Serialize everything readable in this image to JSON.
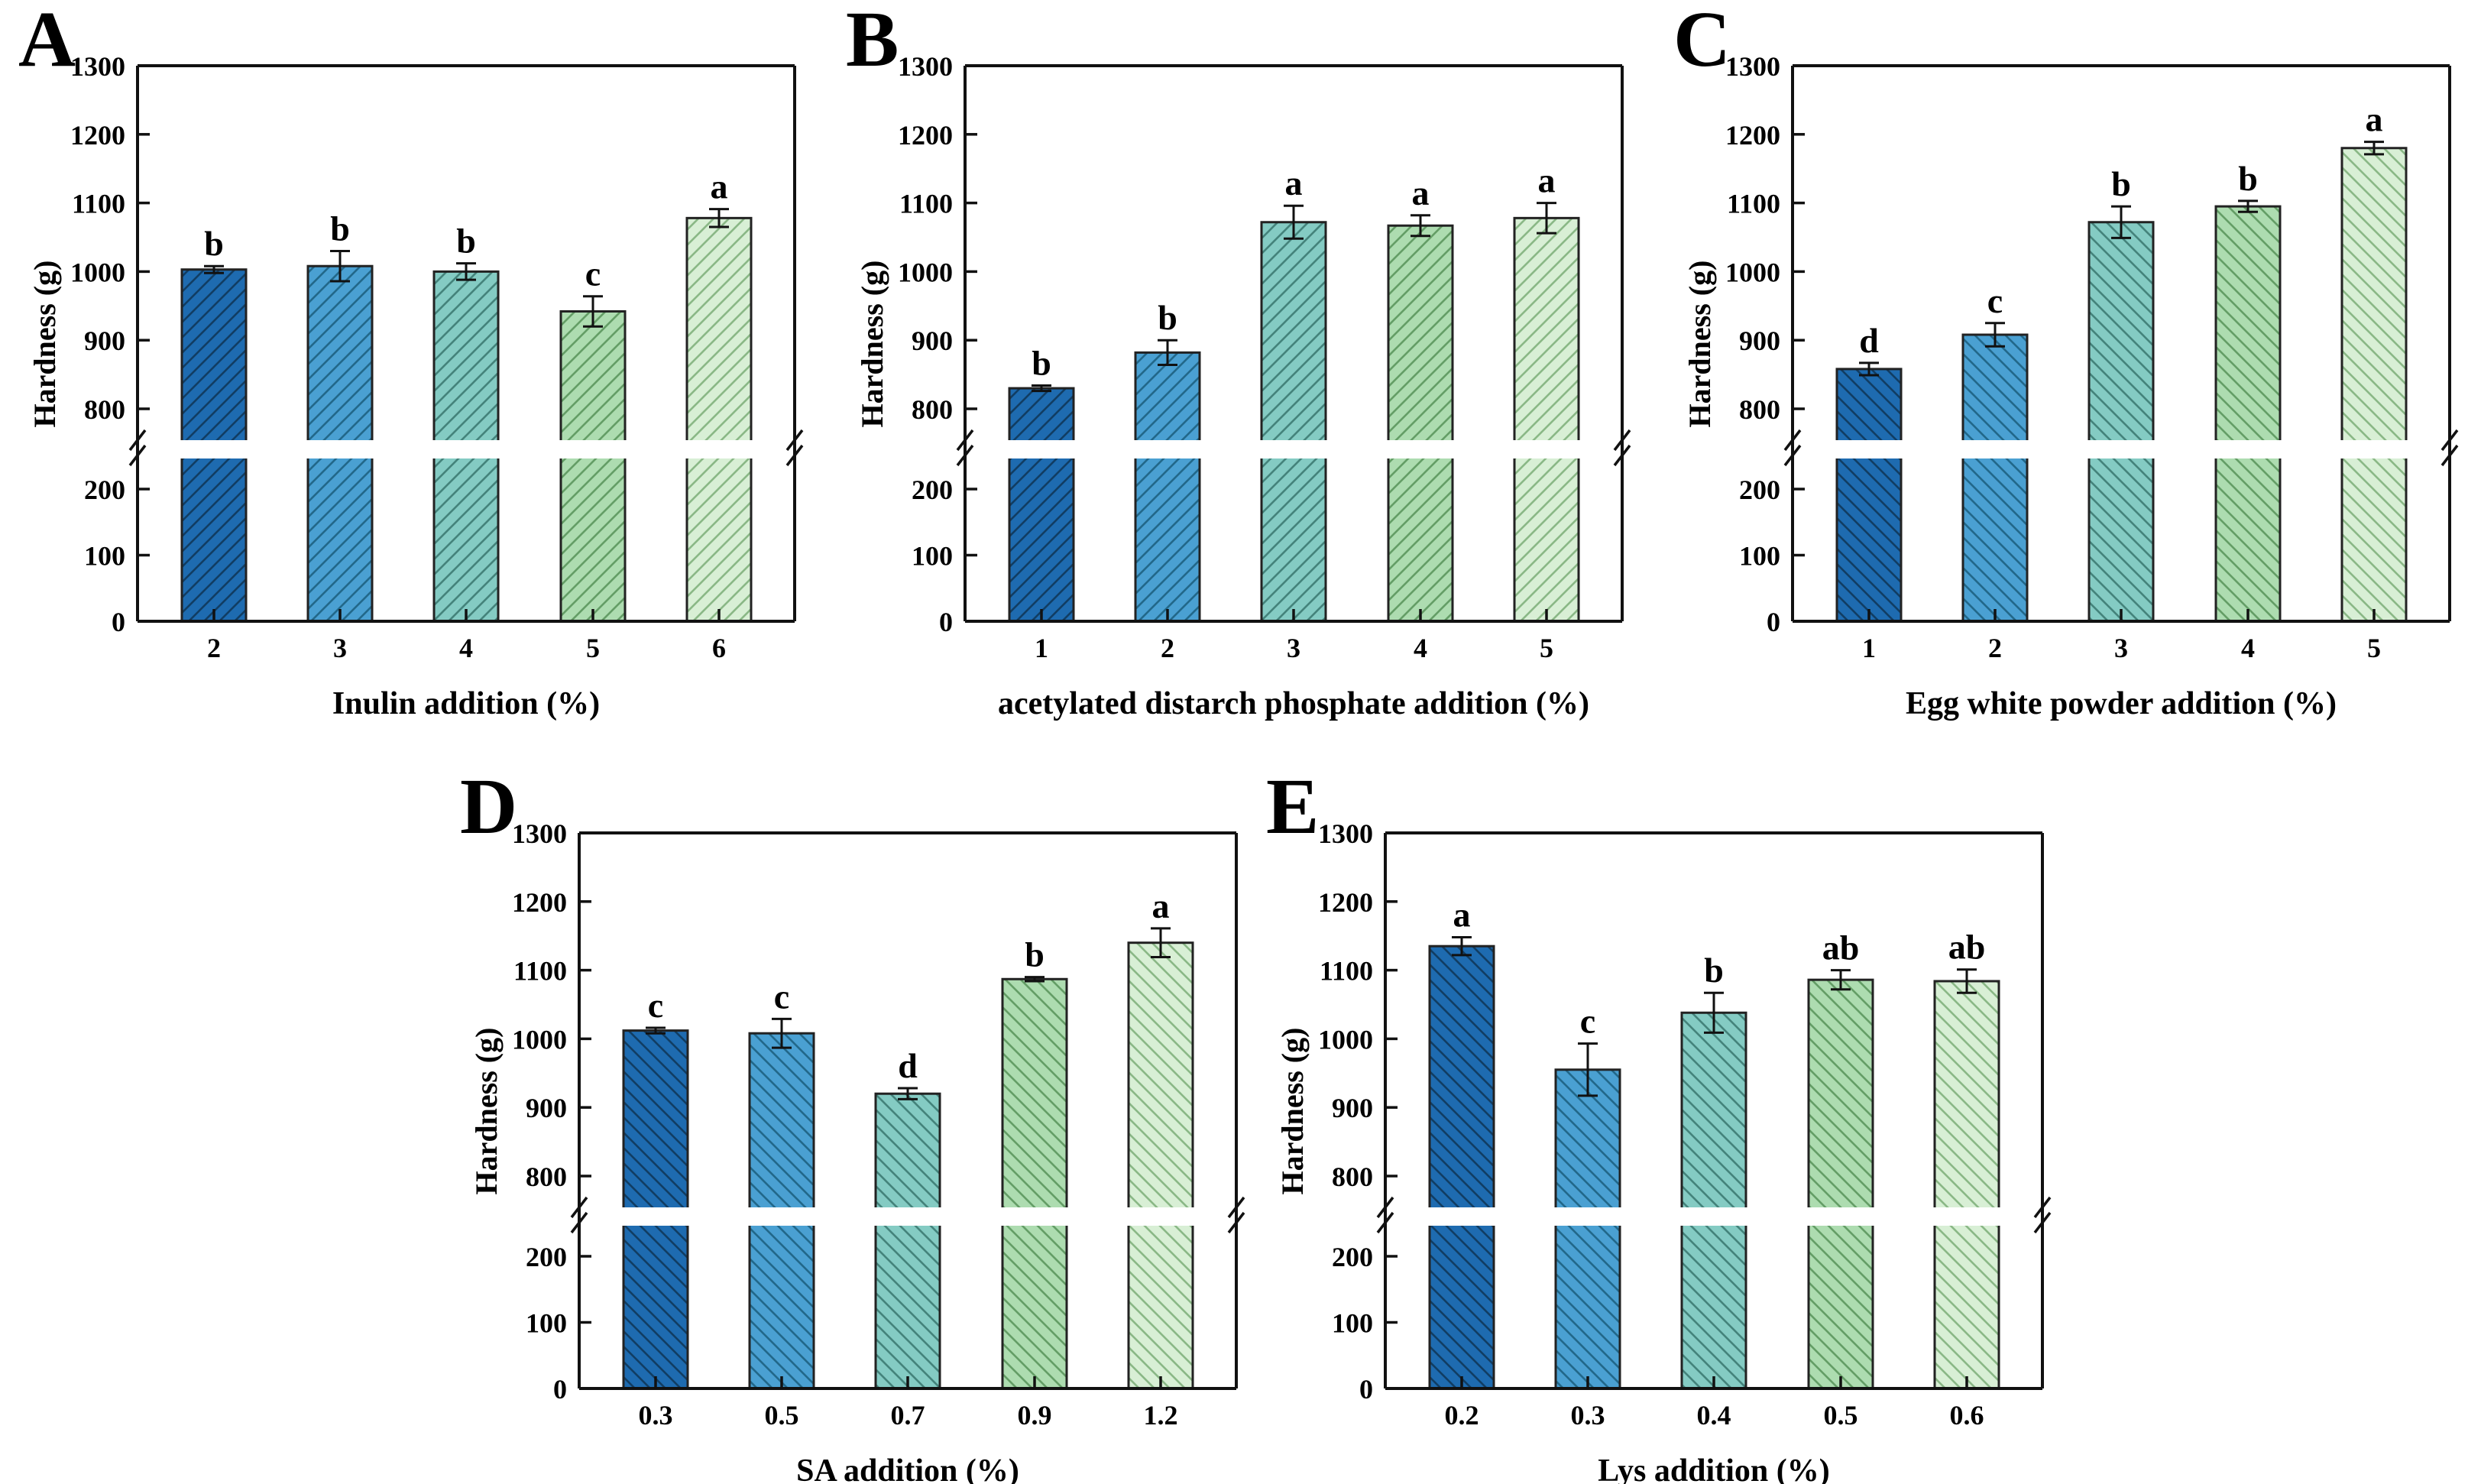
{
  "figure": {
    "background": "#ffffff",
    "shared_ylabel": "Hardness (g)",
    "axis_color": "#111111",
    "bar_fill_colors": [
      "#1e6bb0",
      "#4aa0d2",
      "#84cbc3",
      "#addcb0",
      "#d8efd5"
    ],
    "bar_hatch_colors": [
      "#113d63",
      "#22688a",
      "#44837b",
      "#649e66",
      "#8ab886"
    ],
    "broken_y_axis": {
      "bottom_segment": {
        "min": 0,
        "max": 250,
        "ticks": [
          0,
          100,
          200
        ]
      },
      "top_segment": {
        "min": 750,
        "max": 1300,
        "ticks": [
          1300,
          1200,
          1100,
          1000,
          900,
          800
        ]
      }
    }
  },
  "chart_data": [
    {
      "panel": "A",
      "type": "bar",
      "title": "",
      "xlabel": "Inulin addition (%)",
      "ylabel": "Hardness (g)",
      "categories": [
        "2",
        "3",
        "4",
        "5",
        "6"
      ],
      "values": [
        1003,
        1008,
        1000,
        942,
        1078
      ],
      "errors": [
        5,
        22,
        12,
        22,
        13
      ],
      "sig_labels": [
        "b",
        "b",
        "b",
        "c",
        "a"
      ],
      "hatch_direction": "forward",
      "grid": "off",
      "ylim_segments": [
        [
          0,
          250
        ],
        [
          750,
          1300
        ]
      ]
    },
    {
      "panel": "B",
      "type": "bar",
      "title": "",
      "xlabel": "acetylated distarch phosphate addition (%)",
      "ylabel": "Hardness (g)",
      "categories": [
        "1",
        "2",
        "3",
        "4",
        "5"
      ],
      "values": [
        830,
        882,
        1072,
        1067,
        1078
      ],
      "errors": [
        4,
        18,
        24,
        15,
        22
      ],
      "sig_labels": [
        "b",
        "b",
        "a",
        "a",
        "a"
      ],
      "hatch_direction": "forward",
      "grid": "off",
      "ylim_segments": [
        [
          0,
          250
        ],
        [
          750,
          1300
        ]
      ]
    },
    {
      "panel": "C",
      "type": "bar",
      "title": "",
      "xlabel": "Egg white powder addition (%)",
      "ylabel": "Hardness (g)",
      "categories": [
        "1",
        "2",
        "3",
        "4",
        "5"
      ],
      "values": [
        858,
        908,
        1072,
        1095,
        1180
      ],
      "errors": [
        9,
        17,
        23,
        8,
        9
      ],
      "sig_labels": [
        "d",
        "c",
        "b",
        "b",
        "a"
      ],
      "hatch_direction": "backward",
      "grid": "off",
      "ylim_segments": [
        [
          0,
          250
        ],
        [
          750,
          1300
        ]
      ]
    },
    {
      "panel": "D",
      "type": "bar",
      "title": "",
      "xlabel": "SA addition (%)",
      "ylabel": "Hardness (g)",
      "categories": [
        "0.3",
        "0.5",
        "0.7",
        "0.9",
        "1.2"
      ],
      "values": [
        1012,
        1008,
        920,
        1087,
        1140
      ],
      "errors": [
        4,
        21,
        8,
        3,
        21
      ],
      "sig_labels": [
        "c",
        "c",
        "d",
        "b",
        "a"
      ],
      "hatch_direction": "backward",
      "grid": "off",
      "ylim_segments": [
        [
          0,
          250
        ],
        [
          750,
          1300
        ]
      ]
    },
    {
      "panel": "E",
      "type": "bar",
      "title": "",
      "xlabel": "Lys addition (%)",
      "ylabel": "Hardness (g)",
      "categories": [
        "0.2",
        "0.3",
        "0.4",
        "0.5",
        "0.6"
      ],
      "values": [
        1135,
        955,
        1038,
        1086,
        1084
      ],
      "errors": [
        13,
        38,
        29,
        14,
        17
      ],
      "sig_labels": [
        "a",
        "c",
        "b",
        "ab",
        "ab"
      ],
      "hatch_direction": "backward",
      "grid": "off",
      "ylim_segments": [
        [
          0,
          250
        ],
        [
          750,
          1300
        ]
      ]
    }
  ]
}
